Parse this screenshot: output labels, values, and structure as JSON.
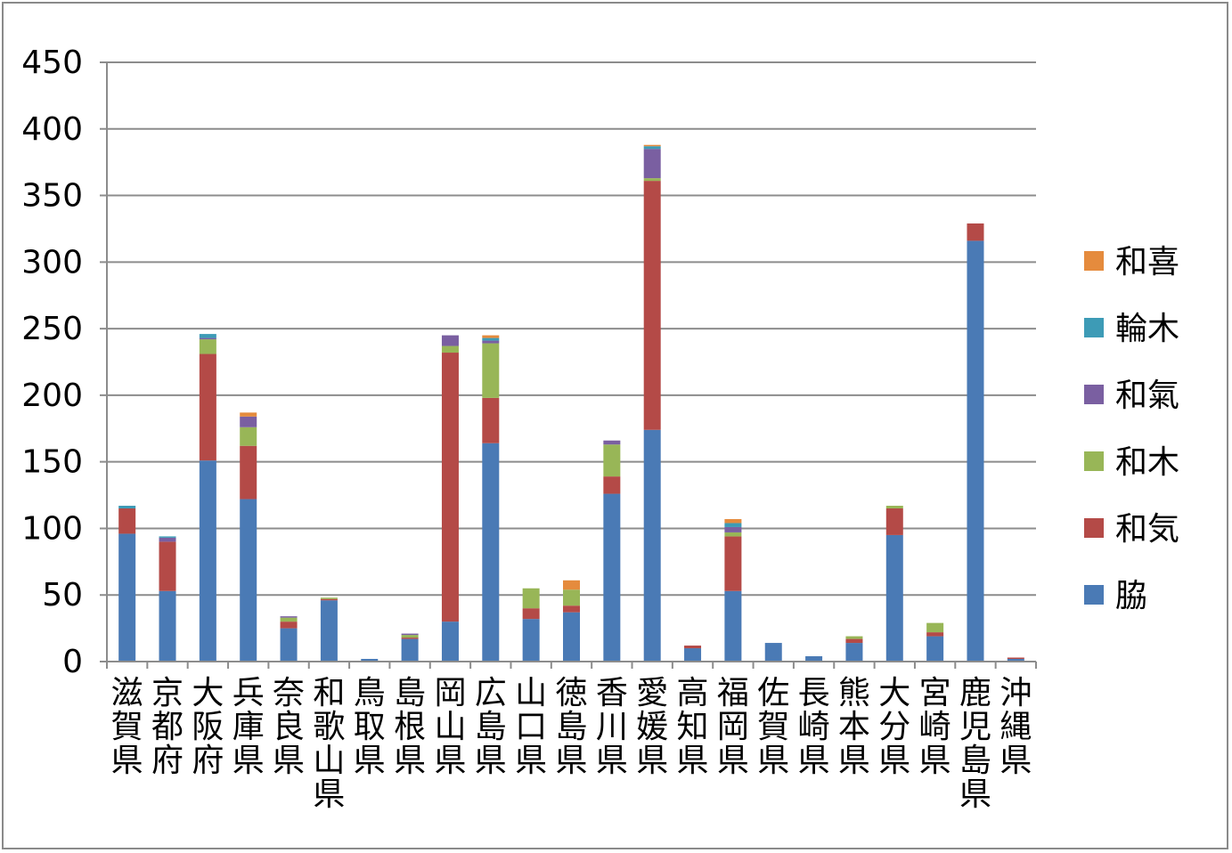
{
  "chart_data": {
    "type": "bar",
    "stacked": true,
    "categories": [
      "滋賀県",
      "京都府",
      "大阪府",
      "兵庫県",
      "奈良県",
      "和歌山県",
      "鳥取県",
      "島根県",
      "岡山県",
      "広島県",
      "山口県",
      "徳島県",
      "香川県",
      "愛媛県",
      "高知県",
      "福岡県",
      "佐賀県",
      "長崎県",
      "熊本県",
      "大分県",
      "宮崎県",
      "鹿児島県",
      "沖縄県"
    ],
    "ylim": [
      0,
      450
    ],
    "yticks": [
      0,
      50,
      100,
      150,
      200,
      250,
      300,
      350,
      400,
      450
    ],
    "ytick_labels": [
      "0",
      "50",
      "100",
      "150",
      "200",
      "250",
      "300",
      "350",
      "400",
      "450"
    ],
    "grid": true,
    "legend_position": "right",
    "series": [
      {
        "name": "脇",
        "color": "#4a7ab5",
        "values": [
          96,
          53,
          151,
          122,
          25,
          46,
          2,
          17,
          30,
          164,
          32,
          37,
          126,
          174,
          10,
          53,
          14,
          4,
          14,
          95,
          19,
          316,
          2
        ]
      },
      {
        "name": "和気",
        "color": "#b44a47",
        "values": [
          19,
          37,
          80,
          40,
          5,
          1,
          0,
          1,
          202,
          34,
          8,
          5,
          13,
          187,
          2,
          41,
          0,
          0,
          3,
          20,
          3,
          13,
          1
        ]
      },
      {
        "name": "和木",
        "color": "#98b657",
        "values": [
          0,
          0,
          11,
          14,
          3,
          1,
          0,
          2,
          5,
          41,
          15,
          12,
          24,
          2,
          0,
          3,
          0,
          0,
          2,
          2,
          7,
          0,
          0
        ]
      },
      {
        "name": "和氣",
        "color": "#7a5fa1",
        "values": [
          0,
          3,
          1,
          8,
          1,
          0,
          0,
          1,
          8,
          2,
          0,
          0,
          3,
          22,
          0,
          4,
          0,
          0,
          0,
          0,
          0,
          0,
          0
        ]
      },
      {
        "name": "輪木",
        "color": "#3d9bb6",
        "values": [
          2,
          1,
          3,
          0,
          0,
          0,
          0,
          0,
          0,
          2,
          0,
          0,
          0,
          2,
          0,
          3,
          0,
          0,
          0,
          0,
          0,
          0,
          0
        ]
      },
      {
        "name": "和喜",
        "color": "#e58b3d",
        "values": [
          0,
          0,
          0,
          3,
          0,
          0,
          0,
          0,
          0,
          2,
          0,
          7,
          0,
          1,
          0,
          3,
          0,
          0,
          0,
          0,
          0,
          0,
          0
        ]
      }
    ]
  }
}
